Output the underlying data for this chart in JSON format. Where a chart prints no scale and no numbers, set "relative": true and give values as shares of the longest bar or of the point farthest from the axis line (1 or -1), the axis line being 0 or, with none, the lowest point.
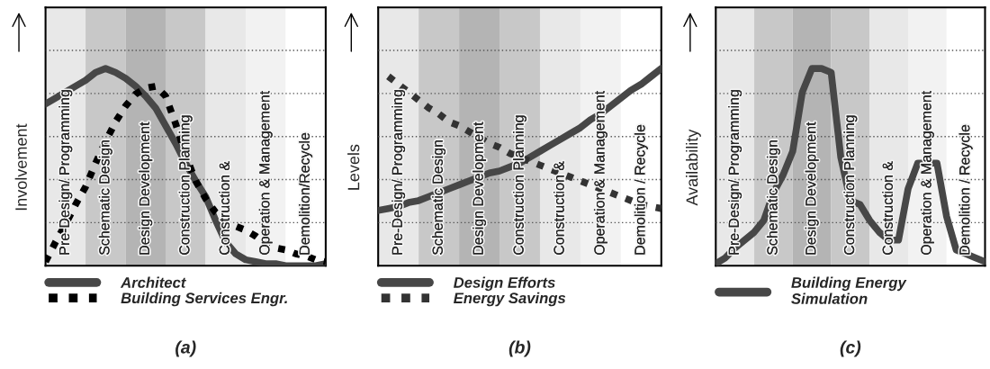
{
  "chart_data": [
    {
      "type": "line",
      "title": "(a)",
      "ylabel": "Involvement",
      "relative": true,
      "grid": "y",
      "legend": "bottom",
      "categories": [
        null,
        null,
        "Pre-Design/ Programming",
        null,
        null,
        null,
        "Schematic Design",
        null,
        null,
        null,
        "Design Development",
        null,
        null,
        null,
        "Construction Planning",
        null,
        null,
        null,
        "Construction &",
        null,
        null,
        null,
        "Operation & Management",
        null,
        null,
        null,
        "Demolition/Recycle",
        null,
        null
      ],
      "series": [
        {
          "name": "Architect",
          "color": "#474747",
          "line_style": "solid",
          "values": [
            0.82,
            0.85,
            0.88,
            0.91,
            0.94,
            0.98,
            1.0,
            0.98,
            0.95,
            0.91,
            0.86,
            0.8,
            0.71,
            0.62,
            0.52,
            0.43,
            0.35,
            0.23,
            0.12,
            0.06,
            0.03,
            0.02,
            0.01,
            0.01,
            0.0,
            0.0,
            0.0,
            0.0,
            0.01
          ]
        },
        {
          "name": "Building Services Engr.",
          "color": "#000000",
          "line_style": "dotted",
          "values": [
            0.02,
            0.12,
            0.21,
            0.31,
            0.4,
            0.52,
            0.63,
            0.73,
            0.81,
            0.87,
            0.9,
            0.91,
            0.86,
            0.72,
            0.56,
            0.43,
            0.34,
            0.27,
            0.23,
            0.2,
            0.18,
            0.15,
            0.11,
            0.09,
            0.08,
            0.06,
            0.05,
            0.03,
            0.02
          ]
        }
      ]
    },
    {
      "type": "line",
      "title": "(b)",
      "ylabel": "Levels",
      "relative": true,
      "grid": "y",
      "legend": "bottom",
      "categories": [
        null,
        null,
        "Pre-Design/ Programming",
        null,
        null,
        null,
        "Schematic Design",
        null,
        null,
        null,
        "Design Development",
        null,
        null,
        null,
        "Construction Planning",
        null,
        null,
        null,
        "Construction &",
        null,
        null,
        null,
        "Operation & Management",
        null,
        null,
        null,
        "Demolition / Recycle",
        null,
        null
      ],
      "series": [
        {
          "name": "Design Efforts",
          "color": "#474747",
          "line_style": "solid",
          "values": [
            0.28,
            0.29,
            0.3,
            0.32,
            0.33,
            0.35,
            0.37,
            0.39,
            0.41,
            0.43,
            0.45,
            0.47,
            0.48,
            0.5,
            0.52,
            0.55,
            0.58,
            0.61,
            0.64,
            0.67,
            0.7,
            0.74,
            0.77,
            0.81,
            0.85,
            0.89,
            0.92,
            0.96,
            1.0
          ]
        },
        {
          "name": "Energy Savings",
          "color": "#333333",
          "line_style": "dotted",
          "values": [
            null,
            0.96,
            0.92,
            0.88,
            0.84,
            0.8,
            0.77,
            0.73,
            0.71,
            0.68,
            0.65,
            0.62,
            0.6,
            0.57,
            0.55,
            0.53,
            0.51,
            0.49,
            0.47,
            0.45,
            0.43,
            0.41,
            0.39,
            0.37,
            0.35,
            0.33,
            0.31,
            0.3,
            0.29
          ]
        }
      ]
    },
    {
      "type": "line",
      "title": "(c)",
      "ylabel": "Availability",
      "relative": true,
      "grid": "y",
      "legend": "bottom",
      "categories": [
        null,
        null,
        "Pre-Design/ Programming",
        null,
        null,
        null,
        "Schematic Design",
        null,
        null,
        null,
        "Design Development",
        null,
        null,
        null,
        "Construction Planning",
        null,
        null,
        null,
        "Construction &",
        null,
        null,
        null,
        "Operation & Management",
        null,
        null,
        null,
        "Demolition / Recycle",
        null,
        null
      ],
      "series": [
        {
          "name": "Building Energy\nSimulation",
          "color": "#474747",
          "line_style": "solid",
          "values": [
            0.01,
            0.04,
            0.09,
            0.13,
            0.17,
            0.23,
            0.37,
            0.46,
            0.58,
            0.88,
            1.0,
            1.0,
            0.98,
            0.55,
            0.33,
            0.31,
            0.23,
            0.17,
            0.13,
            0.13,
            0.39,
            0.52,
            0.52,
            0.52,
            0.25,
            0.08,
            0.06,
            0.04,
            0.02
          ]
        }
      ]
    }
  ]
}
